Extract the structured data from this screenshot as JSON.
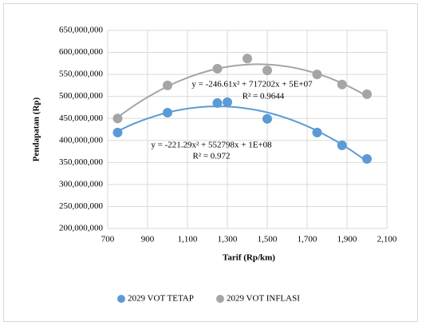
{
  "chart_data": {
    "type": "scatter",
    "x_label": "Tarif (Rp/km)",
    "y_label": "Pendapatan (Rp)",
    "xlim": [
      700,
      2100
    ],
    "xticks": [
      700,
      900,
      {
        "value": 1100,
        "label": "1,100"
      },
      {
        "value": 1300,
        "label": "1,300"
      },
      {
        "value": 1500,
        "label": "1,500"
      },
      {
        "value": 1700,
        "label": "1,700"
      },
      {
        "value": 1900,
        "label": "1,900"
      },
      {
        "value": 2100,
        "label": "2,100"
      }
    ],
    "ylim": [
      200000000,
      650000000
    ],
    "yticks": [
      {
        "value": 200000000,
        "label": "200,000,000"
      },
      {
        "value": 250000000,
        "label": "250,000,000"
      },
      {
        "value": 300000000,
        "label": "300,000,000"
      },
      {
        "value": 350000000,
        "label": "350,000,000"
      },
      {
        "value": 400000000,
        "label": "400,000,000"
      },
      {
        "value": 450000000,
        "label": "450,000,000"
      },
      {
        "value": 500000000,
        "label": "500,000,000"
      },
      {
        "value": 550000000,
        "label": "550,000,000"
      },
      {
        "value": 600000000,
        "label": "600,000,000"
      },
      {
        "value": 650000000,
        "label": "650,000,000"
      }
    ],
    "grid": true,
    "legend": "bottom",
    "trendline": "polynomial",
    "series": [
      {
        "name": "2029 VOT TETAP",
        "color": "#5b9bd5",
        "x": [
          750,
          1000,
          1250,
          1300,
          1500,
          1750,
          1875,
          2000
        ],
        "values": [
          418000000,
          463000000,
          485000000,
          487000000,
          449000000,
          418000000,
          389000000,
          358000000
        ],
        "equation": "y = -221.29x² + 552798x + 1E+08",
        "r2": "R² = 0.972"
      },
      {
        "name": "2029 VOT INFLASI",
        "color": "#a5a5a5",
        "x": [
          750,
          1000,
          1250,
          1400,
          1500,
          1750,
          1875,
          2000
        ],
        "values": [
          450000000,
          525000000,
          563000000,
          586000000,
          559000000,
          550000000,
          527000000,
          505000000
        ],
        "equation": "y = -246.61x² + 717202x + 5E+07",
        "r2": "R² = 0.9644"
      }
    ]
  }
}
